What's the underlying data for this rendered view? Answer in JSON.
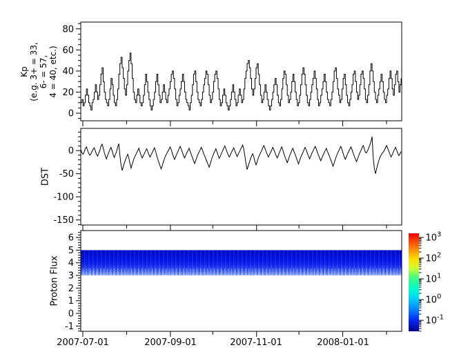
{
  "x_axis": {
    "tick_labels": [
      "2007-07-01",
      "2007-09-01",
      "2007-11-01",
      "2008-01-01"
    ],
    "month_tick_days": [
      0,
      31,
      62,
      92,
      123,
      153,
      184,
      215
    ],
    "labeled_tick_indices": [
      0,
      2,
      4,
      6
    ],
    "domain_days": [
      -1.47,
      225.75
    ]
  },
  "chart_data": [
    {
      "type": "line",
      "name": "Kp",
      "ylabel": "Kp (e.g. 3+ = 33, 6- = 57, 4 = 40, etc.)",
      "ylabel_lines": [
        "Kp",
        "(e.g. 3+ = 33,",
        "6- = 57,",
        "4 = 40, etc.)"
      ],
      "ylim": [
        -7.2,
        86.4
      ],
      "yticks": [
        0,
        20,
        40,
        60,
        80
      ],
      "minor_tick_step": 5,
      "line_color": "#000000",
      "style": "step",
      "x_start_day": -1.4,
      "x_step_days": 0.79,
      "values": [
        10,
        13,
        7,
        10,
        17,
        23,
        17,
        10,
        7,
        3,
        10,
        13,
        20,
        27,
        20,
        13,
        17,
        27,
        37,
        43,
        30,
        20,
        13,
        10,
        7,
        13,
        23,
        33,
        27,
        17,
        10,
        7,
        13,
        23,
        37,
        47,
        53,
        43,
        33,
        23,
        17,
        27,
        40,
        50,
        57,
        47,
        33,
        20,
        13,
        10,
        17,
        23,
        17,
        10,
        7,
        10,
        17,
        27,
        37,
        30,
        20,
        13,
        7,
        3,
        7,
        13,
        20,
        30,
        37,
        27,
        17,
        10,
        13,
        20,
        27,
        20,
        13,
        10,
        17,
        23,
        30,
        37,
        40,
        33,
        23,
        13,
        7,
        10,
        17,
        23,
        30,
        37,
        30,
        20,
        13,
        10,
        7,
        3,
        10,
        17,
        27,
        37,
        40,
        30,
        20,
        13,
        10,
        7,
        13,
        20,
        27,
        33,
        40,
        37,
        27,
        17,
        10,
        13,
        20,
        30,
        37,
        40,
        33,
        23,
        13,
        7,
        10,
        17,
        23,
        17,
        10,
        7,
        3,
        7,
        13,
        20,
        27,
        20,
        13,
        7,
        10,
        17,
        23,
        17,
        10,
        13,
        23,
        33,
        40,
        47,
        50,
        43,
        33,
        23,
        17,
        23,
        33,
        43,
        47,
        37,
        27,
        17,
        10,
        13,
        20,
        27,
        20,
        13,
        7,
        3,
        7,
        13,
        20,
        27,
        33,
        27,
        17,
        10,
        7,
        13,
        23,
        33,
        40,
        37,
        27,
        17,
        10,
        13,
        20,
        30,
        37,
        30,
        20,
        13,
        7,
        10,
        17,
        27,
        37,
        43,
        37,
        27,
        17,
        10,
        7,
        13,
        20,
        27,
        33,
        40,
        33,
        23,
        13,
        7,
        10,
        17,
        23,
        30,
        37,
        30,
        20,
        13,
        10,
        7,
        13,
        20,
        30,
        40,
        43,
        33,
        23,
        17,
        10,
        13,
        23,
        33,
        37,
        27,
        17,
        10,
        7,
        13,
        20,
        27,
        37,
        40,
        30,
        20,
        13,
        17,
        27,
        37,
        40,
        33,
        23,
        13,
        10,
        17,
        27,
        40,
        47,
        40,
        30,
        20,
        13,
        10,
        17,
        23,
        30,
        37,
        30,
        20,
        13,
        10,
        17,
        23,
        33,
        40,
        33,
        23,
        17,
        27,
        37,
        40,
        30,
        20,
        27,
        33
      ]
    },
    {
      "type": "line",
      "name": "DST",
      "ylabel": "DST",
      "ylim": [
        -161,
        48
      ],
      "yticks": [
        0,
        -50,
        -100,
        -150
      ],
      "minor_tick_step": 10,
      "line_color": "#000000",
      "style": "linear",
      "x_start_day": -1.4,
      "x_step_days": 0.79,
      "values": [
        2,
        -5,
        -8,
        -3,
        4,
        8,
        1,
        -6,
        -10,
        -7,
        -2,
        3,
        6,
        -1,
        -8,
        -12,
        -6,
        0,
        9,
        14,
        6,
        -4,
        -12,
        -18,
        -10,
        -4,
        2,
        7,
        0,
        -9,
        -15,
        -8,
        -2,
        8,
        15,
        -10,
        -30,
        -43,
        -35,
        -27,
        -20,
        -14,
        -8,
        -16,
        -28,
        -38,
        -30,
        -22,
        -15,
        -10,
        -5,
        0,
        5,
        -3,
        -10,
        -16,
        -11,
        -6,
        -1,
        4,
        -2,
        -9,
        -14,
        -9,
        -4,
        1,
        6,
        -2,
        -11,
        -19,
        -26,
        -33,
        -40,
        -32,
        -24,
        -17,
        -11,
        -6,
        -2,
        3,
        8,
        2,
        -6,
        -13,
        -19,
        -13,
        -7,
        -2,
        4,
        9,
        3,
        -4,
        -11,
        -16,
        -10,
        -5,
        0,
        5,
        -2,
        -9,
        -15,
        -22,
        -28,
        -21,
        -14,
        -8,
        -3,
        2,
        7,
        1,
        -6,
        -12,
        -18,
        -24,
        -30,
        -36,
        -28,
        -20,
        -13,
        -7,
        -2,
        4,
        -3,
        -10,
        -17,
        -12,
        -6,
        -1,
        5,
        10,
        4,
        -3,
        -9,
        -14,
        -9,
        -4,
        1,
        6,
        0,
        -7,
        -13,
        -8,
        -3,
        2,
        7,
        12,
        3,
        -12,
        -28,
        -41,
        -33,
        -25,
        -18,
        -12,
        -7,
        -14,
        -24,
        -31,
        -24,
        -16,
        -10,
        -5,
        0,
        6,
        11,
        5,
        -2,
        -8,
        -14,
        -9,
        -4,
        1,
        7,
        2,
        -5,
        -11,
        -16,
        -10,
        -4,
        2,
        8,
        1,
        -7,
        -14,
        -20,
        -26,
        -19,
        -12,
        -6,
        0,
        5,
        -2,
        -8,
        -15,
        -22,
        -29,
        -22,
        -15,
        -9,
        -4,
        2,
        7,
        1,
        -6,
        -12,
        -18,
        -12,
        -6,
        -1,
        4,
        9,
        3,
        -4,
        -10,
        -16,
        -22,
        -16,
        -10,
        -5,
        0,
        5,
        -2,
        -8,
        -14,
        -20,
        -27,
        -34,
        -27,
        -19,
        -12,
        -6,
        -1,
        4,
        9,
        2,
        -6,
        -13,
        -19,
        -13,
        -7,
        -2,
        3,
        8,
        2,
        -5,
        -12,
        -18,
        -24,
        -18,
        -11,
        -5,
        0,
        6,
        11,
        4,
        -4,
        -5,
        0,
        6,
        12,
        20,
        30,
        -15,
        -38,
        -50,
        -40,
        -30,
        -22,
        -15,
        -10,
        -6,
        -3,
        1,
        6,
        11,
        5,
        -2,
        -8,
        -14,
        -9,
        -3,
        2,
        7,
        1,
        -6,
        -11,
        -7,
        -2
      ]
    },
    {
      "type": "heatmap",
      "name": "Proton Flux",
      "ylabel": "Proton Flux",
      "ylim": [
        -1.42,
        6.55
      ],
      "yticks": [
        6,
        5,
        4,
        3,
        2,
        1,
        0,
        -1
      ],
      "minor_tick_step": 0.2,
      "band": {
        "y_from": 3,
        "y_to": 5,
        "flux_range_approx": [
          0.1,
          1
        ],
        "gradient_top_to_bottom": [
          {
            "o": 0.0,
            "c": "#000bd0"
          },
          {
            "o": 0.4,
            "c": "#0017ee"
          },
          {
            "o": 0.58,
            "c": "#1228f6"
          },
          {
            "o": 0.7,
            "c": "#2741fa"
          },
          {
            "o": 0.8,
            "c": "#3f60fd"
          },
          {
            "o": 0.88,
            "c": "#5d80ff"
          },
          {
            "o": 0.95,
            "c": "#85a2ff"
          },
          {
            "o": 1.0,
            "c": "#b5c6ff"
          }
        ]
      },
      "colorbar": {
        "scale": "log",
        "range_exp": [
          3.2,
          -1.53
        ],
        "tick_exponents": [
          3,
          2,
          1,
          0,
          -1
        ],
        "tick_labels": [
          {
            "base": "10",
            "exp": "3"
          },
          {
            "base": "10",
            "exp": "2"
          },
          {
            "base": "10",
            "exp": "1"
          },
          {
            "base": "10",
            "exp": "0"
          },
          {
            "base": "10",
            "exp": "-1"
          }
        ],
        "jet_stops_top_to_bottom": [
          {
            "o": 0.0,
            "c": "#e80000"
          },
          {
            "o": 0.09,
            "c": "#ff4e00"
          },
          {
            "o": 0.18,
            "c": "#ff9b00"
          },
          {
            "o": 0.27,
            "c": "#ffe100"
          },
          {
            "o": 0.36,
            "c": "#c8ff37"
          },
          {
            "o": 0.45,
            "c": "#46ff7d"
          },
          {
            "o": 0.56,
            "c": "#00ffc8"
          },
          {
            "o": 0.66,
            "c": "#00d4ff"
          },
          {
            "o": 0.78,
            "c": "#0080ff"
          },
          {
            "o": 0.89,
            "c": "#0026f2"
          },
          {
            "o": 1.0,
            "c": "#000087"
          }
        ]
      }
    }
  ]
}
